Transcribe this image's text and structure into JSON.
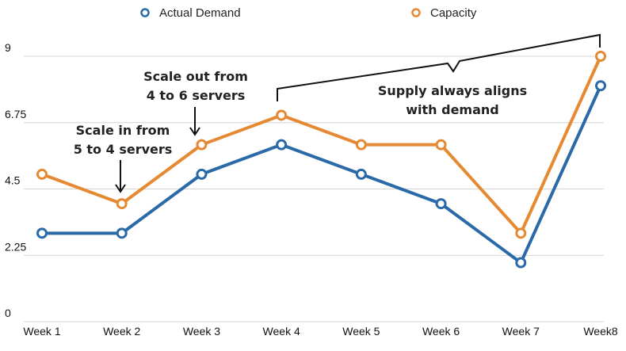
{
  "chart_data": {
    "type": "line",
    "categories": [
      "Week 1",
      "Week 2",
      "Week 3",
      "Week 4",
      "Week 5",
      "Week 6",
      "Week 7",
      "Week8"
    ],
    "series": [
      {
        "name": "Actual Demand",
        "color": "#2b6aa8",
        "values": [
          3,
          3,
          5,
          6,
          5,
          4,
          2,
          8
        ]
      },
      {
        "name": "Capacity",
        "color": "#e58a33",
        "values": [
          5,
          4,
          6,
          7,
          6,
          6,
          3,
          9
        ]
      }
    ],
    "ylim": [
      0,
      9
    ],
    "yticks": [
      "0",
      "2.25",
      "4.5",
      "6.75",
      "9"
    ],
    "yticks_values": [
      0,
      2.25,
      4.5,
      6.75,
      9
    ],
    "grid": true,
    "legend_position": "top",
    "annotations": [
      {
        "lines": [
          "Scale in from",
          "5 to 4 servers"
        ],
        "target_category": "Week 2"
      },
      {
        "lines": [
          "Scale out from",
          "4 to 6 servers"
        ],
        "target_category": "Week 3"
      },
      {
        "lines": [
          "Supply always aligns",
          "with demand"
        ],
        "bracket_from": "Week 4",
        "bracket_to": "Week8"
      }
    ]
  }
}
